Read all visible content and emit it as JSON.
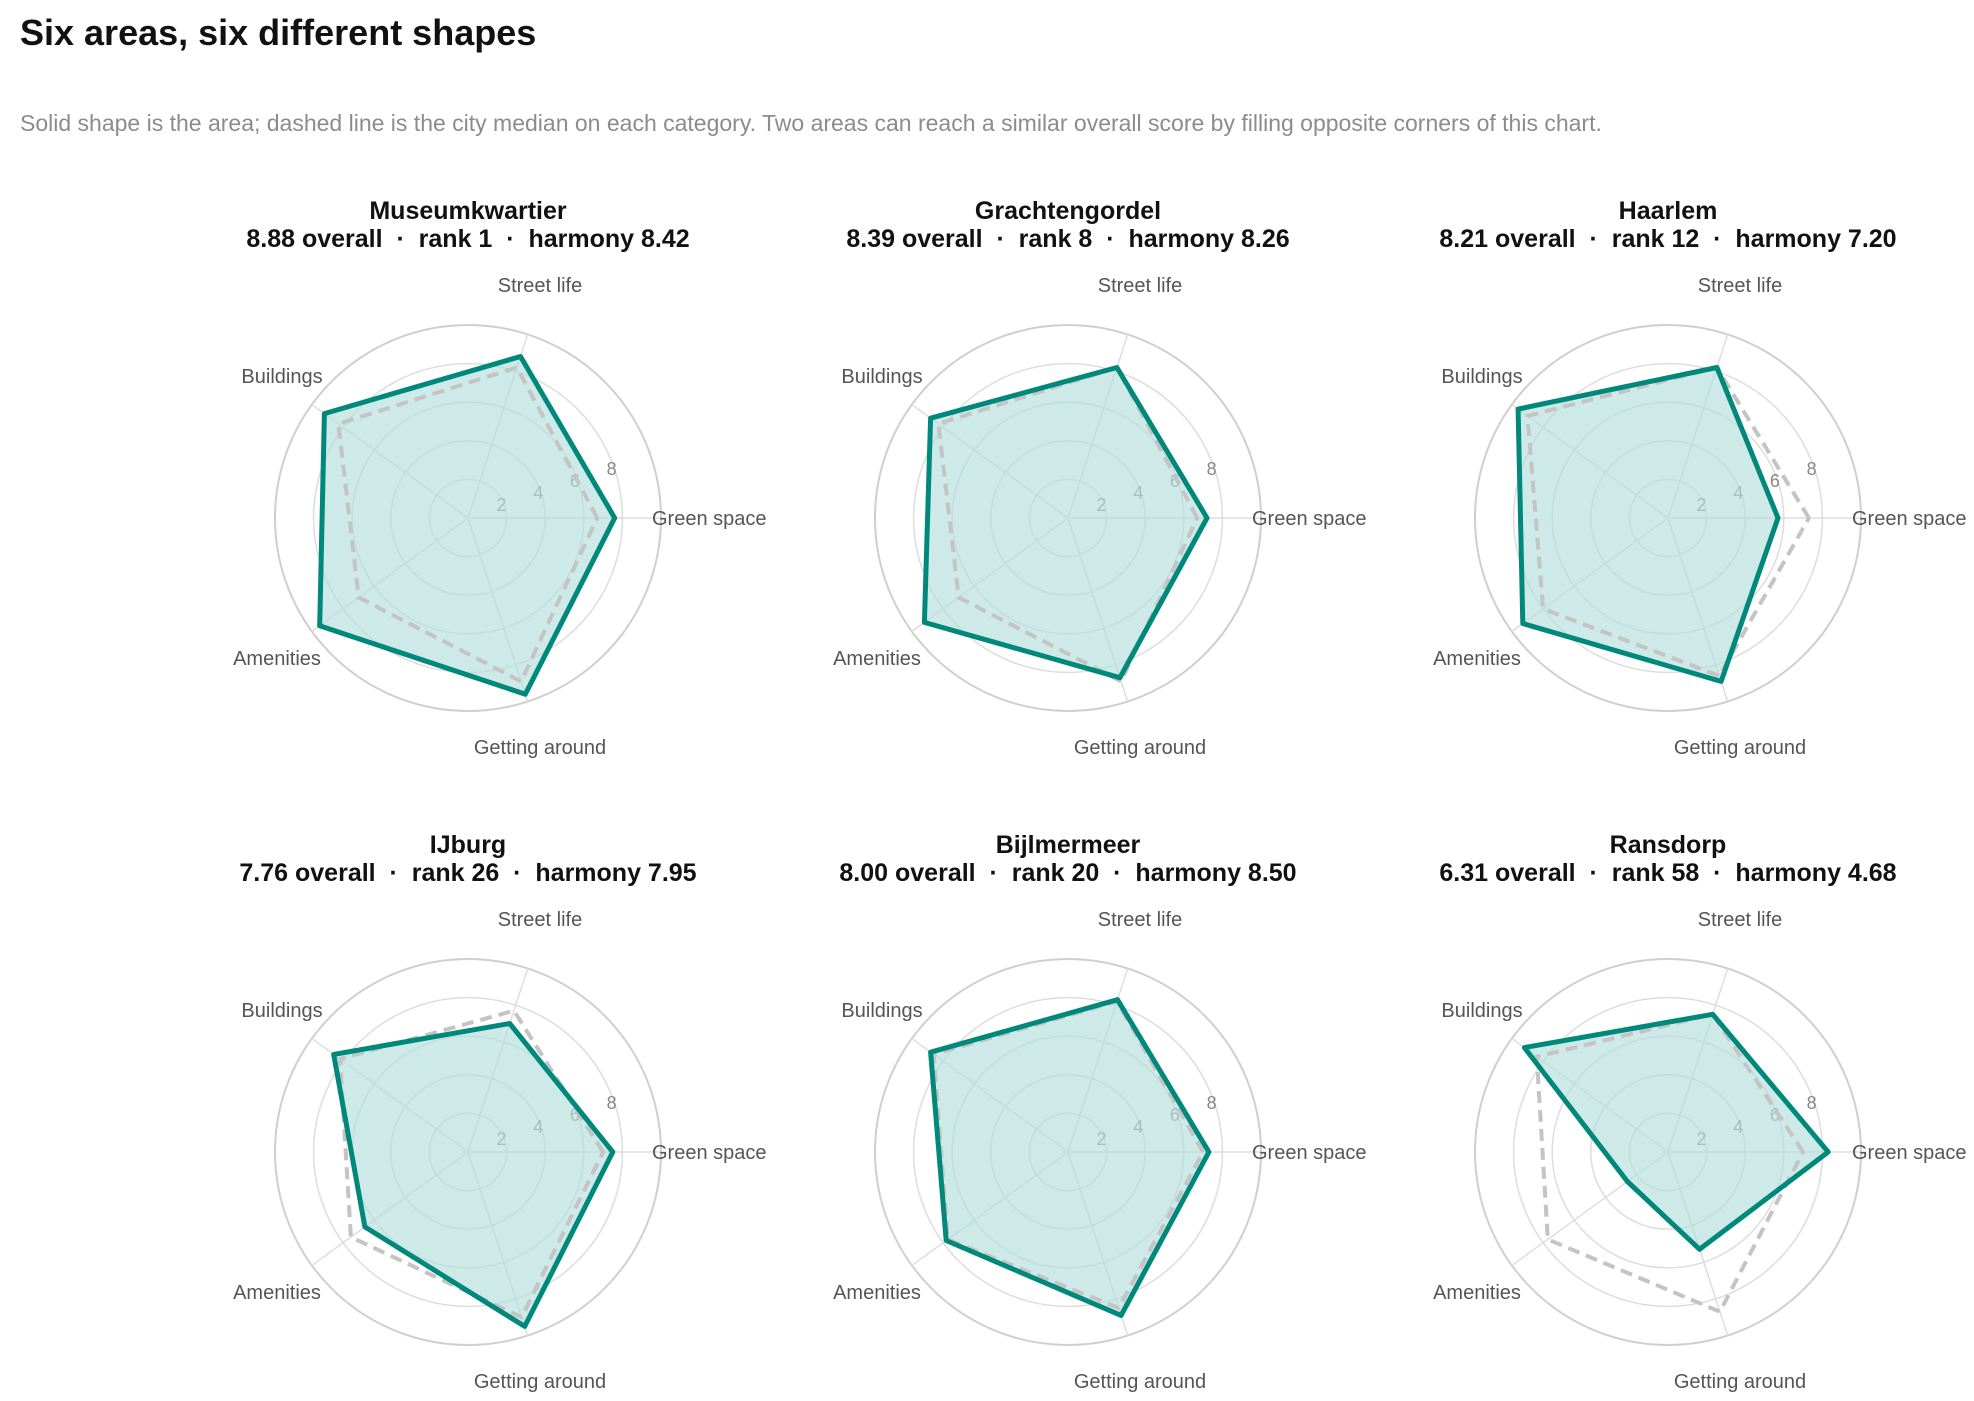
{
  "header": {
    "title": "Six areas, six different shapes",
    "subtitle": "Solid shape is the area; dashed line is the city median on each category. Two areas can reach a similar overall score by filling opposite corners of this chart."
  },
  "colors": {
    "area_line": "#00897b",
    "area_fill": "#b2dfdb",
    "median_line": "#c4c4c4",
    "grid": "#dddddd",
    "outer_ring": "#cfcfcf",
    "label": "#555555",
    "tick": "#888888",
    "panel_title": "#111111"
  },
  "chart_data": [
    {
      "type": "radar",
      "title": "Museumkwartier",
      "subtitle": "8.88 overall  ·  rank 1  ·  harmony 8.42",
      "axes": [
        "Green space",
        "Street life",
        "Buildings",
        "Amenities",
        "Getting around"
      ],
      "rticks": [
        2,
        4,
        6,
        8
      ],
      "rlim": [
        0,
        10
      ],
      "series": [
        {
          "name": "Area",
          "values": [
            7.6,
            8.8,
            9.2,
            9.5,
            9.6
          ]
        },
        {
          "name": "City median",
          "values": [
            6.7,
            8.2,
            8.3,
            7.0,
            8.9
          ]
        }
      ]
    },
    {
      "type": "radar",
      "title": "Grachtengordel",
      "subtitle": "8.39 overall  ·  rank 8  ·  harmony 8.26",
      "axes": [
        "Green space",
        "Street life",
        "Buildings",
        "Amenities",
        "Getting around"
      ],
      "rticks": [
        2,
        4,
        6,
        8
      ],
      "rlim": [
        0,
        10
      ],
      "series": [
        {
          "name": "Area",
          "values": [
            7.2,
            8.2,
            8.8,
            9.2,
            8.7
          ]
        },
        {
          "name": "City median",
          "values": [
            6.7,
            8.2,
            8.3,
            7.0,
            8.9
          ]
        }
      ]
    },
    {
      "type": "radar",
      "title": "Haarlem",
      "subtitle": "8.21 overall  ·  rank 12  ·  harmony 7.20",
      "axes": [
        "Green space",
        "Street life",
        "Buildings",
        "Amenities",
        "Getting around"
      ],
      "rticks": [
        2,
        4,
        6,
        8
      ],
      "rlim": [
        0,
        10
      ],
      "series": [
        {
          "name": "Area",
          "values": [
            5.7,
            8.2,
            9.6,
            9.3,
            8.9
          ]
        },
        {
          "name": "City median",
          "values": [
            7.3,
            8.2,
            9.0,
            8.0,
            8.6
          ]
        }
      ]
    },
    {
      "type": "radar",
      "title": "IJburg",
      "subtitle": "7.76 overall  ·  rank 26  ·  harmony 7.95",
      "axes": [
        "Green space",
        "Street life",
        "Buildings",
        "Amenities",
        "Getting around"
      ],
      "rticks": [
        2,
        4,
        6,
        8
      ],
      "rlim": [
        0,
        10
      ],
      "series": [
        {
          "name": "Area",
          "values": [
            7.5,
            7.0,
            8.6,
            6.6,
            9.5
          ]
        },
        {
          "name": "City median",
          "values": [
            7.0,
            7.7,
            8.2,
            7.5,
            9.0
          ]
        }
      ]
    },
    {
      "type": "radar",
      "title": "Bijlmermeer",
      "subtitle": "8.00 overall  ·  rank 20  ·  harmony 8.50",
      "axes": [
        "Green space",
        "Street life",
        "Buildings",
        "Amenities",
        "Getting around"
      ],
      "rticks": [
        2,
        4,
        6,
        8
      ],
      "rlim": [
        0,
        10
      ],
      "series": [
        {
          "name": "Area",
          "values": [
            7.3,
            8.3,
            8.8,
            7.8,
            8.9
          ]
        },
        {
          "name": "City median",
          "values": [
            7.0,
            8.2,
            8.6,
            7.7,
            8.5
          ]
        }
      ]
    },
    {
      "type": "radar",
      "title": "Ransdorp",
      "subtitle": "6.31 overall  ·  rank 58  ·  harmony 4.68",
      "axes": [
        "Green space",
        "Street life",
        "Buildings",
        "Amenities",
        "Getting around"
      ],
      "rticks": [
        2,
        4,
        6,
        8
      ],
      "rlim": [
        0,
        10
      ],
      "series": [
        {
          "name": "Area",
          "values": [
            8.3,
            7.5,
            9.2,
            2.6,
            5.3
          ]
        },
        {
          "name": "City median",
          "values": [
            7.0,
            7.5,
            8.4,
            7.7,
            8.7
          ]
        }
      ]
    }
  ]
}
